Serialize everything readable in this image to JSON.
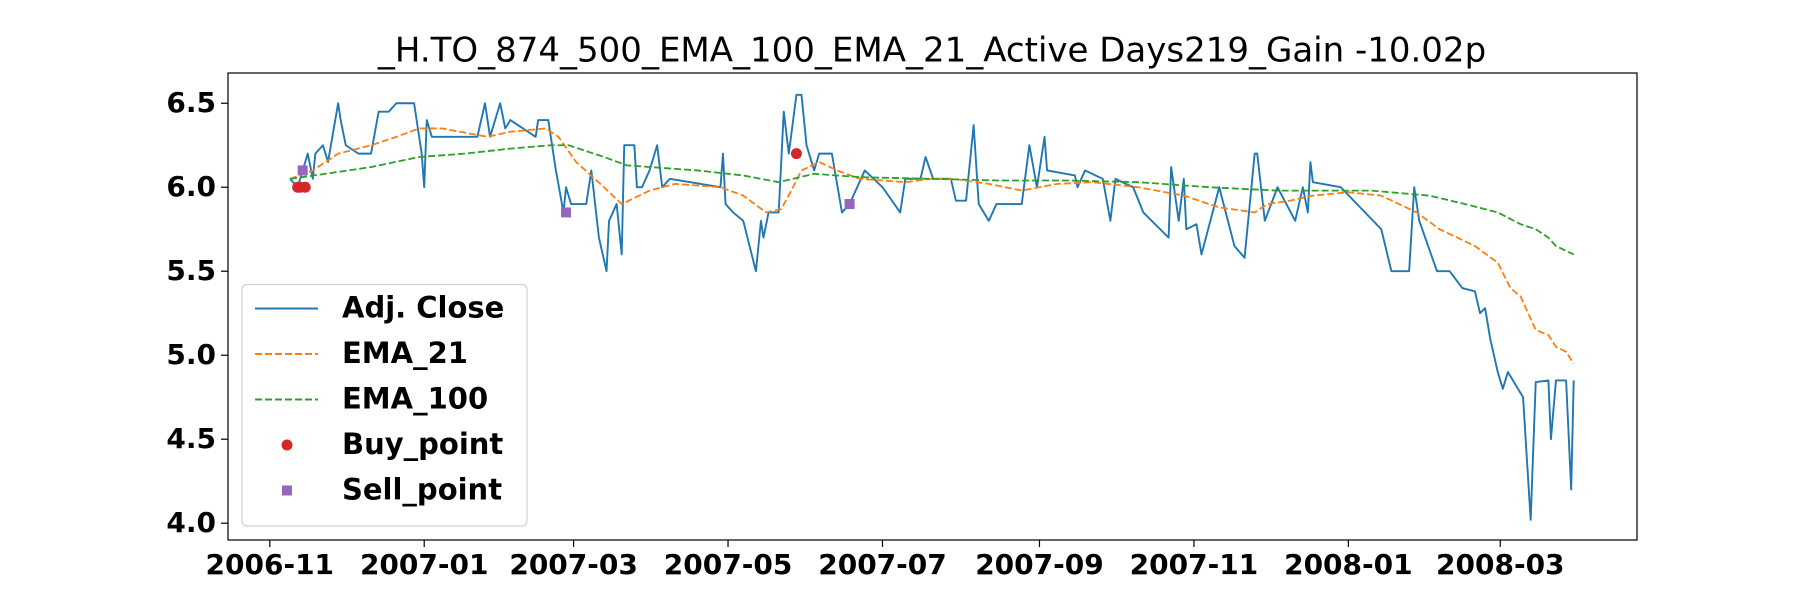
{
  "chart_data": {
    "type": "line",
    "title": "_H.TO_874_500_EMA_100_EMA_21_Active Days219_Gain -10.02p",
    "xlim": [
      13436.5,
      13993
    ],
    "xticks": [
      {
        "value": 13453,
        "label": "2006-11"
      },
      {
        "value": 13514,
        "label": "2007-01"
      },
      {
        "value": 13573,
        "label": "2007-03"
      },
      {
        "value": 13634,
        "label": "2007-05"
      },
      {
        "value": 13695,
        "label": "2007-07"
      },
      {
        "value": 13757,
        "label": "2007-09"
      },
      {
        "value": 13818,
        "label": "2007-11"
      },
      {
        "value": 13879,
        "label": "2008-01"
      },
      {
        "value": 13939,
        "label": "2008-03"
      }
    ],
    "ylim": [
      3.9,
      6.68
    ],
    "yticks": [
      {
        "value": 4.0,
        "label": "4.0"
      },
      {
        "value": 4.5,
        "label": "4.5"
      },
      {
        "value": 5.0,
        "label": "5.0"
      },
      {
        "value": 5.5,
        "label": "5.5"
      },
      {
        "value": 6.0,
        "label": "6.0"
      },
      {
        "value": 6.5,
        "label": "6.5"
      }
    ],
    "grid": false,
    "legend": "lower left",
    "series": [
      {
        "name": "Adj. Close",
        "color": "#1f77b4",
        "kind": "line",
        "style": "solid",
        "x": [
          13461,
          13464,
          13468,
          13470,
          13471,
          13474,
          13476,
          13480,
          13481,
          13483,
          13488,
          13493,
          13496,
          13500,
          13503,
          13510,
          13513,
          13514,
          13515,
          13517,
          13535,
          13538,
          13540,
          13544,
          13546,
          13548,
          13558,
          13559,
          13563,
          13566,
          13569,
          13570,
          13572,
          13578,
          13580,
          13583,
          13586,
          13587,
          13590,
          13592,
          13593,
          13597,
          13598,
          13600,
          13603,
          13606,
          13608,
          13611,
          13631,
          13632,
          13633,
          13636,
          13640,
          13645,
          13647,
          13648,
          13650,
          13654,
          13656,
          13658,
          13661,
          13663,
          13665,
          13668,
          13670,
          13675,
          13679,
          13682,
          13688,
          13695,
          13702,
          13704,
          13710,
          13712,
          13715,
          13722,
          13724,
          13728,
          13731,
          13733,
          13737,
          13740,
          13750,
          13753,
          13756,
          13759,
          13760,
          13771,
          13772,
          13775,
          13782,
          13785,
          13787,
          13794,
          13798,
          13808,
          13809,
          13812,
          13814,
          13815,
          13819,
          13821,
          13828,
          13834,
          13838,
          13842,
          13843,
          13846,
          13851,
          13858,
          13861,
          13863,
          13864,
          13865,
          13876,
          13892,
          13896,
          13903,
          13905,
          13907,
          13914,
          13919,
          13924,
          13929,
          13931,
          13933,
          13935,
          13938,
          13940,
          13942,
          13948,
          13951,
          13953,
          13958,
          13959,
          13961,
          13965,
          13967,
          13968
        ],
        "values": [
          6.05,
          6.0,
          6.2,
          6.05,
          6.2,
          6.25,
          6.15,
          6.5,
          6.4,
          6.25,
          6.2,
          6.2,
          6.45,
          6.45,
          6.5,
          6.5,
          6.2,
          6.0,
          6.4,
          6.3,
          6.3,
          6.5,
          6.3,
          6.5,
          6.35,
          6.4,
          6.3,
          6.4,
          6.4,
          6.1,
          5.85,
          6.0,
          5.9,
          5.9,
          6.1,
          5.7,
          5.5,
          5.8,
          5.9,
          5.6,
          6.25,
          6.25,
          6.0,
          6.0,
          6.1,
          6.25,
          6.0,
          6.05,
          6.0,
          6.2,
          5.9,
          5.85,
          5.8,
          5.5,
          5.8,
          5.7,
          5.85,
          5.85,
          6.45,
          6.2,
          6.55,
          6.55,
          6.25,
          6.1,
          6.2,
          6.2,
          5.85,
          5.9,
          6.1,
          6.0,
          5.85,
          6.05,
          6.05,
          6.18,
          6.05,
          6.05,
          5.92,
          5.92,
          6.37,
          5.9,
          5.8,
          5.9,
          5.9,
          6.25,
          6.0,
          6.3,
          6.1,
          6.07,
          6.0,
          6.1,
          6.05,
          5.8,
          6.05,
          6.0,
          5.85,
          5.7,
          6.12,
          5.8,
          6.05,
          5.75,
          5.78,
          5.6,
          6.0,
          5.65,
          5.58,
          6.2,
          6.2,
          5.8,
          6.0,
          5.8,
          6.0,
          5.85,
          6.15,
          6.03,
          6.0,
          5.75,
          5.5,
          5.5,
          6.0,
          5.8,
          5.5,
          5.5,
          5.4,
          5.38,
          5.25,
          5.28,
          5.1,
          4.9,
          4.8,
          4.9,
          4.75,
          4.02,
          4.84,
          4.85,
          4.5,
          4.85,
          4.85,
          4.2,
          4.85
        ]
      },
      {
        "name": "EMA_21",
        "color": "#ff7f0e",
        "kind": "line",
        "style": "dashed",
        "x": [
          13461,
          13470,
          13480,
          13493,
          13503,
          13512,
          13521,
          13539,
          13548,
          13562,
          13567,
          13574,
          13585,
          13592,
          13603,
          13613,
          13631,
          13640,
          13649,
          13655,
          13659,
          13663,
          13670,
          13677,
          13686,
          13704,
          13714,
          13723,
          13737,
          13750,
          13764,
          13778,
          13796,
          13814,
          13828,
          13842,
          13847,
          13856,
          13865,
          13879,
          13892,
          13906,
          13915,
          13929,
          13938,
          13943,
          13947,
          13953,
          13958,
          13961,
          13965,
          13968
        ],
        "values": [
          6.05,
          6.1,
          6.2,
          6.25,
          6.3,
          6.35,
          6.35,
          6.3,
          6.33,
          6.35,
          6.3,
          6.15,
          6.0,
          5.9,
          5.98,
          6.02,
          6.0,
          5.95,
          5.85,
          5.87,
          5.98,
          6.1,
          6.15,
          6.1,
          6.05,
          6.03,
          6.05,
          6.05,
          6.02,
          5.98,
          6.02,
          6.03,
          6.0,
          5.95,
          5.88,
          5.85,
          5.9,
          5.92,
          5.95,
          5.97,
          5.95,
          5.85,
          5.75,
          5.65,
          5.55,
          5.4,
          5.35,
          5.15,
          5.12,
          5.05,
          5.02,
          4.95
        ]
      },
      {
        "name": "EMA_100",
        "color": "#2ca02c",
        "kind": "line",
        "style": "dashed",
        "x": [
          13461,
          13475,
          13493,
          13512,
          13530,
          13548,
          13564,
          13571,
          13585,
          13594,
          13622,
          13640,
          13654,
          13668,
          13686,
          13714,
          13741,
          13769,
          13796,
          13824,
          13851,
          13888,
          13911,
          13925,
          13938,
          13947,
          13953,
          13958,
          13961,
          13968
        ],
        "values": [
          6.05,
          6.08,
          6.12,
          6.18,
          6.2,
          6.23,
          6.25,
          6.25,
          6.18,
          6.13,
          6.1,
          6.07,
          6.03,
          6.08,
          6.06,
          6.05,
          6.04,
          6.04,
          6.03,
          6.0,
          5.98,
          5.98,
          5.95,
          5.9,
          5.85,
          5.78,
          5.75,
          5.7,
          5.65,
          5.6
        ]
      },
      {
        "name": "Buy_point",
        "color": "#d62728",
        "kind": "scatter",
        "marker": "circle",
        "x": [
          13464,
          13465,
          13467,
          13661
        ],
        "values": [
          6.0,
          6.0,
          6.0,
          6.2
        ]
      },
      {
        "name": "Sell_point",
        "color": "#9467bd",
        "kind": "scatter",
        "marker": "square",
        "x": [
          13466,
          13570,
          13682
        ],
        "values": [
          6.1,
          5.85,
          5.9
        ]
      }
    ]
  }
}
